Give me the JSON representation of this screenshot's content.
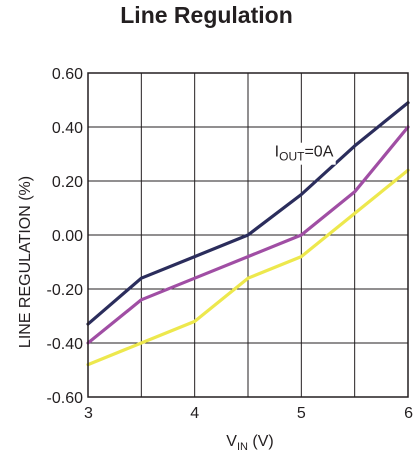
{
  "chart_data": {
    "type": "line",
    "title": "Line Regulation",
    "xlabel": {
      "main": "V",
      "sub": "IN",
      "unit": " (V)"
    },
    "ylabel": "LINE REGULATION (%)",
    "xlim": [
      3,
      6
    ],
    "ylim": [
      -0.6,
      0.6
    ],
    "x_ticks": [
      "3",
      "4",
      "5",
      "6"
    ],
    "y_ticks": [
      "0.60",
      "0.40",
      "0.20",
      "0.00",
      "-0.20",
      "-0.40",
      "-0.60"
    ],
    "grid": true,
    "x_grid_step": 0.5,
    "y_grid_step": 0.2,
    "annotation": {
      "main": "I",
      "sub": "OUT",
      "rest": "=0A",
      "x": 4.75,
      "y": 0.29
    },
    "series": [
      {
        "color": "#2b2d5c",
        "x": [
          3,
          3.5,
          4,
          4.5,
          5,
          5.5,
          6
        ],
        "y": [
          -0.33,
          -0.16,
          -0.08,
          0.0,
          0.15,
          0.33,
          0.49
        ]
      },
      {
        "color": "#a04ea4",
        "x": [
          3,
          3.5,
          4,
          4.5,
          5,
          5.5,
          6
        ],
        "y": [
          -0.4,
          -0.24,
          -0.16,
          -0.08,
          0.0,
          0.16,
          0.4
        ]
      },
      {
        "color": "#ede84d",
        "x": [
          3,
          3.5,
          4,
          4.5,
          5,
          5.5,
          6
        ],
        "y": [
          -0.48,
          -0.4,
          -0.32,
          -0.16,
          -0.08,
          0.08,
          0.24
        ]
      }
    ]
  }
}
